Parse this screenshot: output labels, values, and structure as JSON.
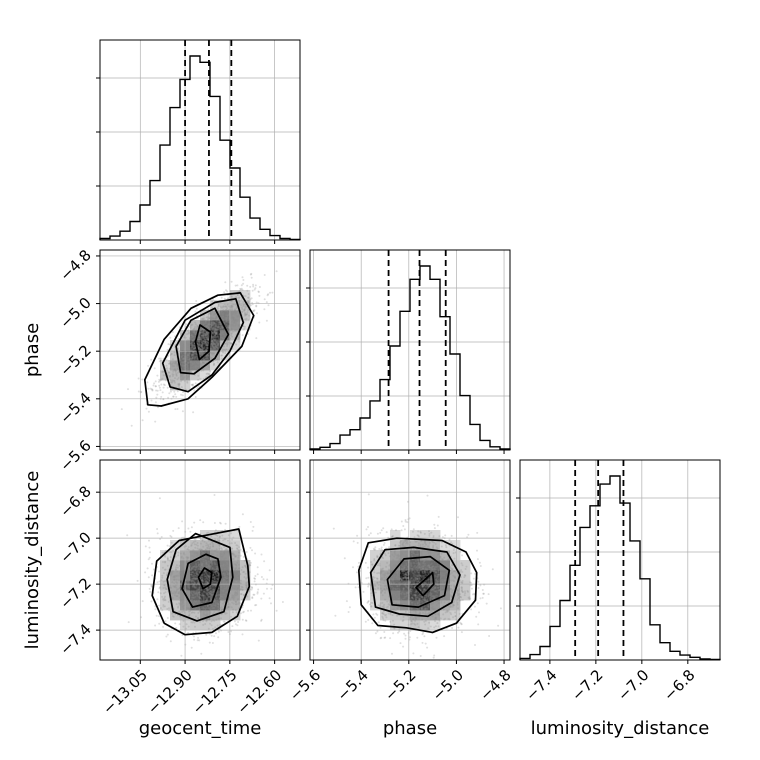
{
  "chart_data": {
    "type": "corner",
    "parameters": [
      "geocent_time",
      "phase",
      "luminosity_distance"
    ],
    "axis_ranges": {
      "geocent_time": [
        -13.185,
        -12.515
      ],
      "phase": [
        -5.615,
        -4.775
      ],
      "luminosity_distance": [
        -7.53,
        -6.66
      ]
    },
    "ticks": {
      "geocent_time": [
        "−13.05",
        "−12.90",
        "−12.75",
        "−12.60"
      ],
      "phase": [
        "−5.6",
        "−5.4",
        "−5.2",
        "−5.0",
        "−4.8"
      ],
      "luminosity_distance": [
        "−7.4",
        "−7.2",
        "−7.0",
        "−6.8"
      ]
    },
    "tick_values": {
      "geocent_time": [
        -13.05,
        -12.9,
        -12.75,
        -12.6
      ],
      "phase": [
        -5.6,
        -5.4,
        -5.2,
        -5.0,
        -4.8
      ],
      "luminosity_distance": [
        -7.4,
        -7.2,
        -7.0,
        -6.8
      ]
    },
    "quantiles": {
      "geocent_time": [
        -12.9,
        -12.82,
        -12.745
      ],
      "phase": [
        -5.285,
        -5.155,
        -5.045
      ],
      "luminosity_distance": [
        -7.29,
        -7.19,
        -7.08
      ]
    },
    "histograms": {
      "geocent_time": {
        "edges": [
          -13.185,
          -13.1515,
          -13.118,
          -13.0845,
          -13.051,
          -13.0175,
          -12.984,
          -12.9505,
          -12.917,
          -12.8835,
          -12.85,
          -12.8165,
          -12.783,
          -12.7495,
          -12.716,
          -12.6825,
          -12.649,
          -12.6155,
          -12.582,
          -12.5485,
          -12.515
        ],
        "counts": [
          3,
          8,
          18,
          38,
          72,
          122,
          195,
          272,
          330,
          378,
          365,
          295,
          205,
          148,
          88,
          45,
          22,
          9,
          3,
          1
        ]
      },
      "phase": {
        "edges": [
          -5.615,
          -5.573,
          -5.531,
          -5.489,
          -5.447,
          -5.405,
          -5.363,
          -5.321,
          -5.279,
          -5.237,
          -5.195,
          -5.153,
          -5.111,
          -5.069,
          -5.027,
          -4.985,
          -4.943,
          -4.901,
          -4.859,
          -4.817,
          -4.775
        ],
        "counts": [
          2,
          5,
          12,
          28,
          38,
          60,
          92,
          132,
          195,
          260,
          320,
          345,
          320,
          250,
          180,
          102,
          48,
          18,
          6,
          2
        ]
      },
      "luminosity_distance": {
        "edges": [
          -7.53,
          -7.4865,
          -7.443,
          -7.3995,
          -7.356,
          -7.3125,
          -7.269,
          -7.2255,
          -7.182,
          -7.1385,
          -7.095,
          -7.0515,
          -7.008,
          -6.9645,
          -6.921,
          -6.8775,
          -6.834,
          -6.7905,
          -6.747,
          -6.7035,
          -6.66
        ],
        "counts": [
          3,
          10,
          25,
          62,
          110,
          175,
          245,
          285,
          325,
          340,
          290,
          220,
          150,
          65,
          32,
          16,
          9,
          5,
          2,
          1
        ]
      }
    },
    "contours": {
      "phase_vs_geocent_time": [
        [
          [
            -12.85,
            -5.09
          ],
          [
            -12.865,
            -5.16
          ],
          [
            -12.852,
            -5.235
          ],
          [
            -12.82,
            -5.2
          ],
          [
            -12.815,
            -5.12
          ],
          [
            -12.85,
            -5.09
          ]
        ],
        [
          [
            -12.8,
            -5.02
          ],
          [
            -12.88,
            -5.07
          ],
          [
            -12.93,
            -5.18
          ],
          [
            -12.915,
            -5.29
          ],
          [
            -12.87,
            -5.295
          ],
          [
            -12.8,
            -5.23
          ],
          [
            -12.755,
            -5.13
          ],
          [
            -12.8,
            -5.02
          ]
        ],
        [
          [
            -12.73,
            -4.98
          ],
          [
            -12.8,
            -4.995
          ],
          [
            -12.9,
            -5.07
          ],
          [
            -12.975,
            -5.25
          ],
          [
            -12.95,
            -5.35
          ],
          [
            -12.89,
            -5.37
          ],
          [
            -12.81,
            -5.3
          ],
          [
            -12.75,
            -5.2
          ],
          [
            -12.705,
            -5.08
          ],
          [
            -12.73,
            -4.98
          ]
        ],
        [
          [
            -12.715,
            -4.955
          ],
          [
            -12.79,
            -4.965
          ],
          [
            -12.88,
            -5.02
          ],
          [
            -12.97,
            -5.15
          ],
          [
            -13.035,
            -5.32
          ],
          [
            -13.025,
            -5.425
          ],
          [
            -12.98,
            -5.43
          ],
          [
            -12.89,
            -5.4
          ],
          [
            -12.81,
            -5.31
          ],
          [
            -12.71,
            -5.18
          ],
          [
            -12.67,
            -5.05
          ],
          [
            -12.715,
            -4.955
          ]
        ]
      ],
      "luminosity_distance_vs_geocent_time": [
        [
          [
            -12.835,
            -7.13
          ],
          [
            -12.855,
            -7.17
          ],
          [
            -12.84,
            -7.22
          ],
          [
            -12.815,
            -7.2
          ],
          [
            -12.81,
            -7.15
          ],
          [
            -12.835,
            -7.13
          ]
        ],
        [
          [
            -12.83,
            -7.07
          ],
          [
            -12.89,
            -7.11
          ],
          [
            -12.91,
            -7.22
          ],
          [
            -12.875,
            -7.3
          ],
          [
            -12.81,
            -7.28
          ],
          [
            -12.78,
            -7.17
          ],
          [
            -12.79,
            -7.09
          ],
          [
            -12.83,
            -7.07
          ]
        ],
        [
          [
            -12.865,
            -6.98
          ],
          [
            -12.93,
            -7.05
          ],
          [
            -12.96,
            -7.18
          ],
          [
            -12.94,
            -7.32
          ],
          [
            -12.86,
            -7.36
          ],
          [
            -12.77,
            -7.32
          ],
          [
            -12.74,
            -7.17
          ],
          [
            -12.75,
            -7.04
          ],
          [
            -12.865,
            -6.98
          ]
        ],
        [
          [
            -12.72,
            -6.96
          ],
          [
            -12.82,
            -6.985
          ],
          [
            -12.92,
            -7.01
          ],
          [
            -12.995,
            -7.1
          ],
          [
            -13.01,
            -7.25
          ],
          [
            -12.97,
            -7.37
          ],
          [
            -12.9,
            -7.42
          ],
          [
            -12.81,
            -7.41
          ],
          [
            -12.725,
            -7.34
          ],
          [
            -12.685,
            -7.21
          ],
          [
            -12.69,
            -7.12
          ],
          [
            -12.72,
            -6.96
          ]
        ]
      ],
      "luminosity_distance_vs_phase": [
        [
          [
            -5.1,
            -7.15
          ],
          [
            -5.17,
            -7.215
          ],
          [
            -5.14,
            -7.25
          ],
          [
            -5.095,
            -7.2
          ],
          [
            -5.1,
            -7.15
          ]
        ],
        [
          [
            -5.11,
            -7.08
          ],
          [
            -5.22,
            -7.09
          ],
          [
            -5.29,
            -7.18
          ],
          [
            -5.27,
            -7.29
          ],
          [
            -5.16,
            -7.3
          ],
          [
            -5.05,
            -7.25
          ],
          [
            -5.03,
            -7.14
          ],
          [
            -5.11,
            -7.08
          ]
        ],
        [
          [
            -5.18,
            -7.04
          ],
          [
            -5.3,
            -7.05
          ],
          [
            -5.36,
            -7.15
          ],
          [
            -5.34,
            -7.3
          ],
          [
            -5.24,
            -7.33
          ],
          [
            -5.12,
            -7.34
          ],
          [
            -5.02,
            -7.28
          ],
          [
            -4.985,
            -7.16
          ],
          [
            -5.04,
            -7.06
          ],
          [
            -5.18,
            -7.04
          ]
        ],
        [
          [
            -5.25,
            -7.0
          ],
          [
            -5.37,
            -7.02
          ],
          [
            -5.41,
            -7.14
          ],
          [
            -5.4,
            -7.29
          ],
          [
            -5.33,
            -7.38
          ],
          [
            -5.21,
            -7.39
          ],
          [
            -5.1,
            -7.41
          ],
          [
            -5.0,
            -7.37
          ],
          [
            -4.92,
            -7.27
          ],
          [
            -4.915,
            -7.15
          ],
          [
            -4.96,
            -7.06
          ],
          [
            -5.06,
            -7.01
          ],
          [
            -5.25,
            -7.0
          ]
        ]
      ]
    },
    "grid": true,
    "colors": {
      "line": "#000000",
      "grid": "#b0b0b0",
      "scatter": "#8c8c8c"
    }
  }
}
